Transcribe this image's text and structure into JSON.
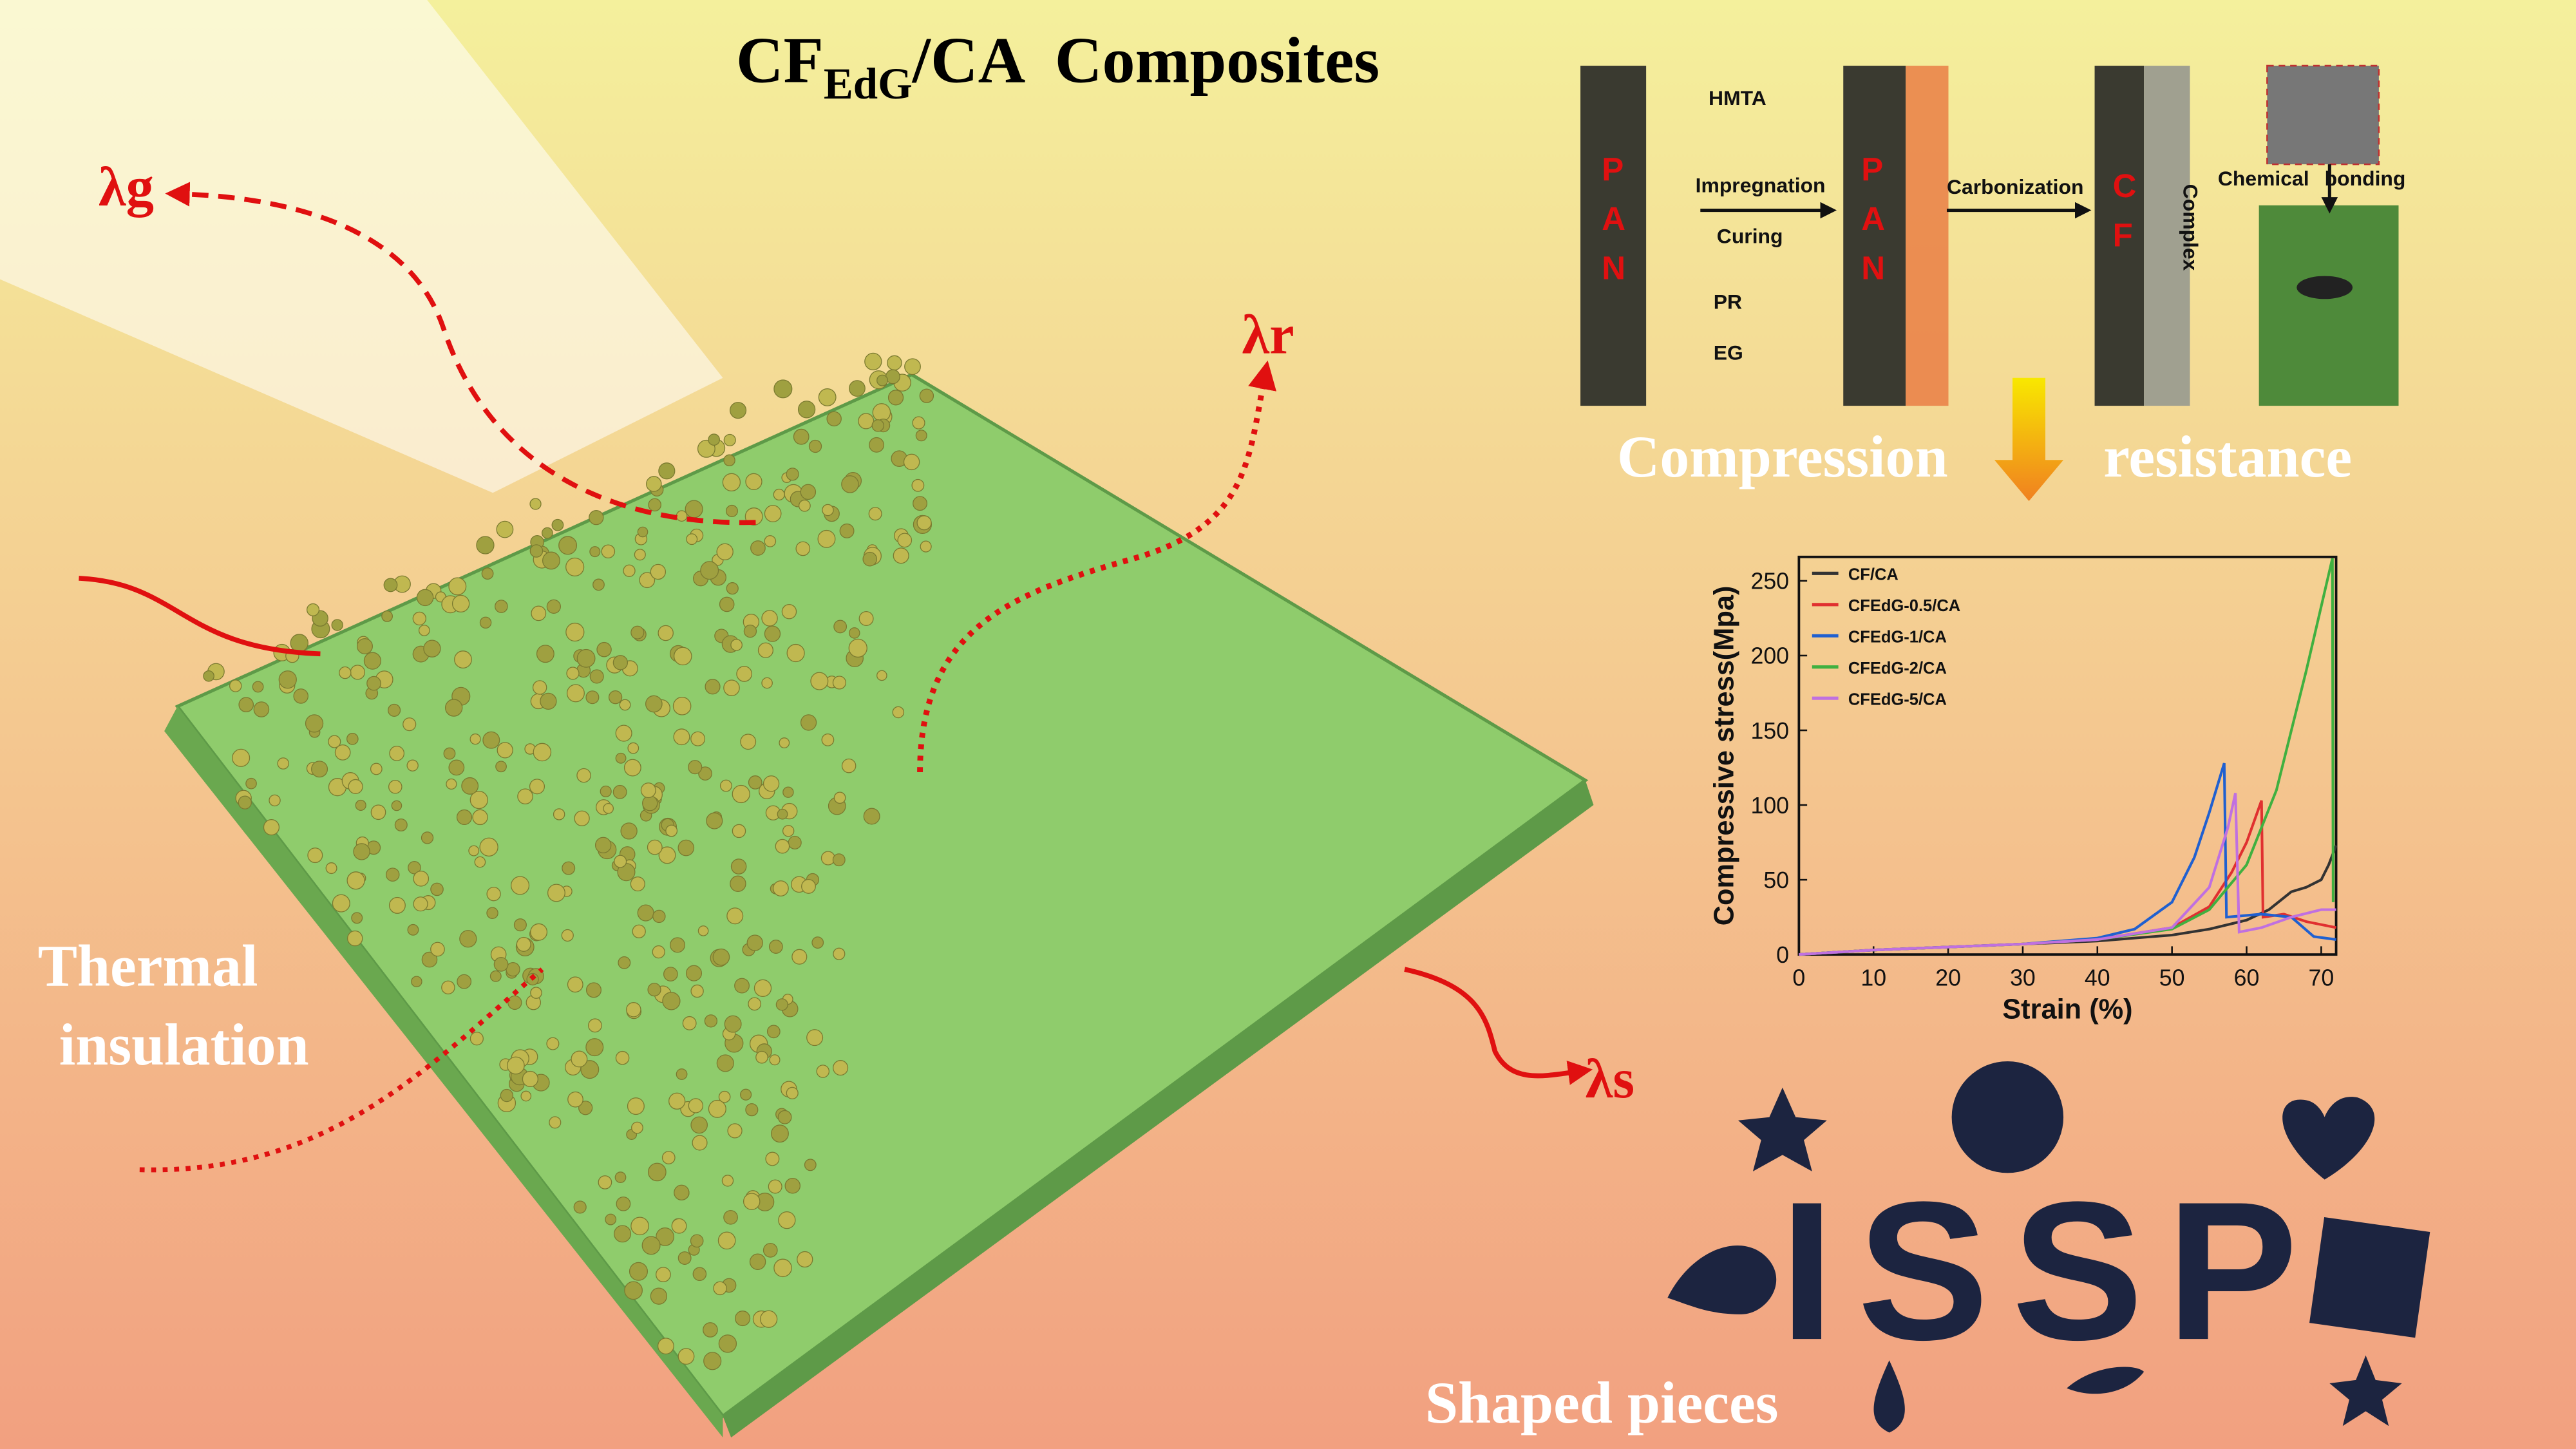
{
  "title": {
    "prefix": "CF",
    "subscript": "EdG",
    "suffix": "/CA  Composites"
  },
  "heat_labels": {
    "gas": "λg",
    "radiation": "λr",
    "solid": "λs"
  },
  "captions": {
    "thermal": [
      "Thermal",
      "insulation"
    ],
    "compression": [
      "Compression",
      "resistance"
    ],
    "shaped": "Shaped pieces"
  },
  "scheme": {
    "hmta": "HMTA",
    "impregnation": "Impregnation",
    "curing": "Curing",
    "pr": "PR",
    "eg": "EG",
    "carbonization": "Carbonization",
    "complex": "Complex",
    "chemical_bonding": [
      "Chemical",
      "bonding"
    ],
    "pan": [
      "P",
      "A",
      "N"
    ],
    "cf": [
      "C",
      "F"
    ]
  },
  "photo_text": "ISSP",
  "chart_data": {
    "type": "line",
    "x_label": "Strain (%)",
    "y_label": "Compressive stress(Mpa)",
    "xlim": [
      0,
      72
    ],
    "ylim": [
      0,
      266
    ],
    "xticks": [
      0,
      10,
      20,
      30,
      40,
      50,
      60,
      70
    ],
    "yticks": [
      0,
      50,
      100,
      150,
      200,
      250
    ],
    "legend": "upper left",
    "series": [
      {
        "name": "CF/CA",
        "color": "#333333",
        "x": [
          0,
          10,
          20,
          30,
          40,
          50,
          55,
          60,
          63,
          66,
          68,
          70,
          71,
          72
        ],
        "values": [
          0,
          3,
          5,
          7,
          9,
          13,
          17,
          23,
          30,
          42,
          45,
          50,
          60,
          73
        ]
      },
      {
        "name": "CFEdG-0.5/CA",
        "color": "#e03030",
        "x": [
          0,
          10,
          20,
          30,
          40,
          50,
          55,
          58,
          60,
          62,
          62.2,
          65,
          68,
          72
        ],
        "values": [
          0,
          3,
          5,
          7,
          10,
          18,
          32,
          55,
          75,
          103,
          25,
          27,
          22,
          18
        ]
      },
      {
        "name": "CFEdG-1/CA",
        "color": "#2060d0",
        "x": [
          0,
          10,
          20,
          30,
          40,
          45,
          50,
          53,
          55,
          57,
          57.3,
          62,
          66,
          69,
          72
        ],
        "values": [
          0,
          3,
          5,
          7,
          11,
          17,
          35,
          65,
          95,
          128,
          25,
          27,
          25,
          12,
          10
        ]
      },
      {
        "name": "CFEdG-2/CA",
        "color": "#40b040",
        "x": [
          0,
          10,
          20,
          30,
          40,
          50,
          55,
          60,
          64,
          68,
          71.5,
          71.6
        ],
        "values": [
          0,
          3,
          5,
          7,
          10,
          17,
          30,
          60,
          110,
          190,
          265,
          35
        ]
      },
      {
        "name": "CFEdG-5/CA",
        "color": "#c070e0",
        "x": [
          0,
          10,
          20,
          30,
          40,
          50,
          55,
          57.5,
          58.5,
          59,
          62,
          66,
          70,
          72
        ],
        "values": [
          0,
          3,
          5,
          7,
          10,
          18,
          45,
          85,
          108,
          15,
          18,
          25,
          30,
          30
        ]
      }
    ]
  }
}
